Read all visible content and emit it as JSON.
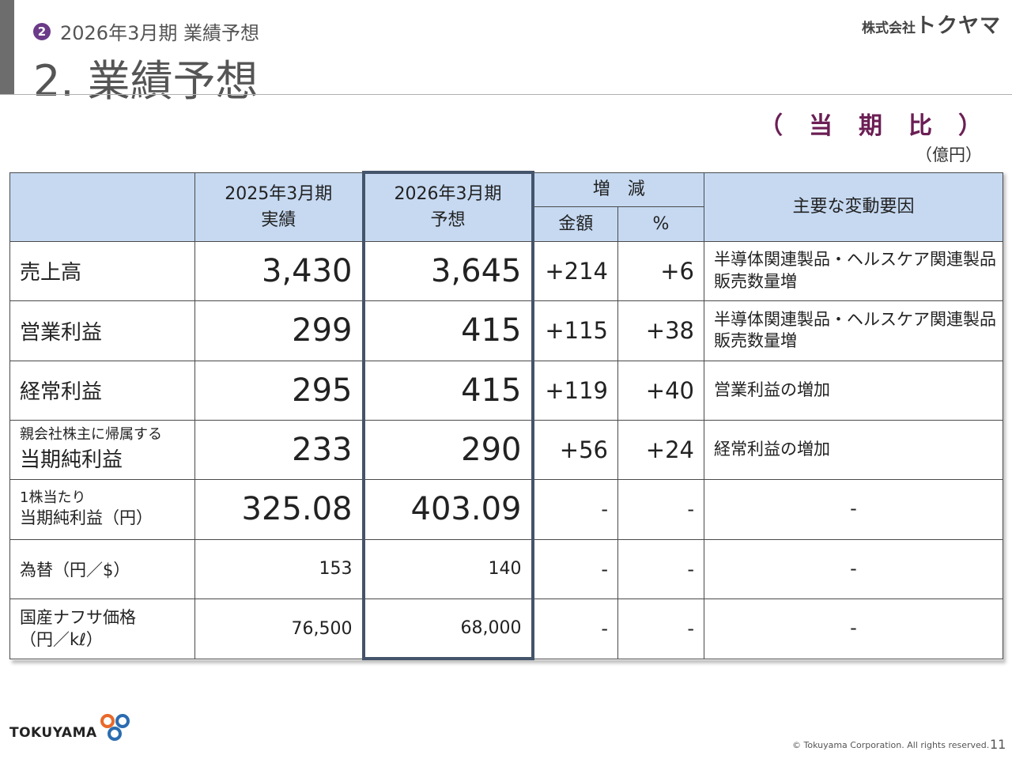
{
  "header": {
    "badge": "2",
    "subtitle": "2026年3月期 業績予想",
    "title": "2. 業績予想",
    "company_small": "株式会社",
    "company_big": "トクヤマ"
  },
  "period_label_chars": [
    "（",
    "当",
    "期",
    "比",
    "）"
  ],
  "unit": "（億円）",
  "table": {
    "headers": {
      "actual_line1": "2025年3月期",
      "actual_line2": "実績",
      "forecast_line1": "2026年3月期",
      "forecast_line2": "予想",
      "change": "増　減",
      "amount": "金額",
      "percent": "%",
      "factors": "主要な変動要因"
    },
    "rows": [
      {
        "label": "売上高",
        "actual": "3,430",
        "forecast": "3,645",
        "amount": "+214",
        "percent": "+6",
        "reason_line1": "半導体関連製品・ヘルスケア関連製品",
        "reason_line2": "販売数量増"
      },
      {
        "label": "営業利益",
        "actual": "299",
        "forecast": "415",
        "amount": "+115",
        "percent": "+38",
        "reason_line1": "半導体関連製品・ヘルスケア関連製品",
        "reason_line2": "販売数量増"
      },
      {
        "label": "経常利益",
        "actual": "295",
        "forecast": "415",
        "amount": "+119",
        "percent": "+40",
        "reason": "営業利益の増加"
      },
      {
        "label_small": "親会社株主に帰属する",
        "label": "当期純利益",
        "actual": "233",
        "forecast": "290",
        "amount": "+56",
        "percent": "+24",
        "reason": "経常利益の増加"
      },
      {
        "label_small": "1株当たり",
        "label": "当期純利益（円）",
        "actual": "325.08",
        "forecast": "403.09",
        "amount": "-",
        "percent": "-",
        "reason": "-"
      },
      {
        "label": "為替（円／$）",
        "actual": "153",
        "forecast": "140",
        "amount": "-",
        "percent": "-",
        "reason": "-"
      },
      {
        "label_line1": "国産ナフサ価格",
        "label_line2": "（円／kℓ）",
        "actual": "76,500",
        "forecast": "68,000",
        "amount": "-",
        "percent": "-",
        "reason": "-"
      }
    ]
  },
  "footer": {
    "logo_text": "TOKUYAMA",
    "copyright": "© Tokuyama Corporation. All rights reserved.",
    "page": "11"
  },
  "colors": {
    "header_fill": "#c6d9f1",
    "highlight_border": "#44546a",
    "period_label": "#6b1e54",
    "badge": "#6b3a88"
  }
}
